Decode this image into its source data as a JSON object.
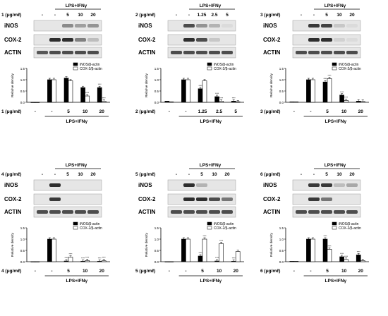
{
  "chart_data": [
    {
      "type": "bar",
      "compound": "1",
      "treatment_label": "LPS+IFNγ",
      "conc_label": "1 (μg/mℓ)",
      "lanes": [
        "-",
        "-",
        "5",
        "10",
        "20"
      ],
      "blot_labels": [
        "iNOS",
        "COX-2",
        "ACTIN"
      ],
      "categories": [
        "-",
        "-",
        "5",
        "10",
        "20"
      ],
      "series": [
        {
          "name": "iNOS/β-actin",
          "values": [
            0.0,
            1.0,
            1.07,
            0.65,
            0.65
          ]
        },
        {
          "name": "COX-2/β-actin",
          "values": [
            0.0,
            1.0,
            0.95,
            0.28,
            0.05
          ]
        }
      ],
      "annotations": [
        "",
        "",
        "",
        "****",
        "****",
        "****",
        "****"
      ],
      "ylabel": "Relative density",
      "yticks": [
        "0.0",
        "0.5",
        "1.0",
        "1.5"
      ],
      "ylim": [
        0,
        1.5
      ],
      "legend": "top-right"
    },
    {
      "type": "bar",
      "compound": "2",
      "treatment_label": "LPS+IFNγ",
      "conc_label": "2 (μg/mℓ)",
      "lanes": [
        "-",
        "-",
        "1.25",
        "2.5",
        "5"
      ],
      "blot_labels": [
        "iNOS",
        "COX-2",
        "ACTIN"
      ],
      "categories": [
        "-",
        "-",
        "1.25",
        "2.5",
        "5"
      ],
      "series": [
        {
          "name": "iNOS/β-actin",
          "values": [
            0.05,
            1.0,
            0.6,
            0.25,
            0.05
          ]
        },
        {
          "name": "COX-2/β-actin",
          "values": [
            0.02,
            1.0,
            0.95,
            0.05,
            0.02
          ]
        }
      ],
      "annotations": [
        "****",
        "",
        "****",
        "****",
        "****"
      ],
      "ylabel": "Relative density",
      "yticks": [
        "0.0",
        "0.5",
        "1.0",
        "1.5"
      ],
      "ylim": [
        0,
        1.5
      ],
      "legend": "top-right"
    },
    {
      "type": "bar",
      "compound": "3",
      "treatment_label": "LPS+IFNγ",
      "conc_label": "3 (μg/mℓ)",
      "lanes": [
        "-",
        "-",
        "5",
        "10",
        "20"
      ],
      "blot_labels": [
        "iNOS",
        "COX-2",
        "ACTIN"
      ],
      "categories": [
        "-",
        "-",
        "5",
        "10",
        "20"
      ],
      "series": [
        {
          "name": "iNOS/β-actin",
          "values": [
            0.02,
            1.0,
            0.9,
            0.32,
            0.05
          ]
        },
        {
          "name": "COX-2/β-actin",
          "values": [
            0.02,
            1.0,
            1.05,
            0.08,
            0.04
          ]
        }
      ],
      "annotations": [
        "****",
        "****",
        "****",
        "****"
      ],
      "ylabel": "Relative density",
      "yticks": [
        "0.0",
        "0.5",
        "1.0",
        "1.5"
      ],
      "ylim": [
        0,
        1.5
      ],
      "legend": "top-right"
    },
    {
      "type": "bar",
      "compound": "4",
      "treatment_label": "LPS+IFNγ",
      "conc_label": "4 (μg/mℓ)",
      "lanes": [
        "-",
        "-",
        "5",
        "10",
        "20"
      ],
      "blot_labels": [
        "iNOS",
        "COX-2",
        "ACTIN"
      ],
      "categories": [
        "-",
        "-",
        "5",
        "10",
        "20"
      ],
      "series": [
        {
          "name": "iNOS/β-actin",
          "values": [
            0.0,
            1.0,
            0.03,
            0.02,
            0.02
          ]
        },
        {
          "name": "COX-2/β-actin",
          "values": [
            0.0,
            1.0,
            0.2,
            0.05,
            0.04
          ]
        }
      ],
      "annotations": [
        "****",
        "****",
        "****",
        "****",
        "****",
        "****"
      ],
      "ylabel": "Relative density",
      "yticks": [
        "0.0",
        "0.5",
        "1.0",
        "1.5"
      ],
      "ylim": [
        0,
        1.5
      ],
      "legend": "top-right"
    },
    {
      "type": "bar",
      "compound": "5",
      "treatment_label": "LPS+IFNγ",
      "conc_label": "5 (μg/mℓ)",
      "lanes": [
        "-",
        "-",
        "5",
        "10",
        "20"
      ],
      "blot_labels": [
        "iNOS",
        "COX-2",
        "ACTIN"
      ],
      "categories": [
        "-",
        "-",
        "5",
        "10",
        "20"
      ],
      "series": [
        {
          "name": "iNOS/β-actin",
          "values": [
            0.0,
            1.0,
            0.25,
            0.03,
            0.02
          ]
        },
        {
          "name": "COX-2/β-actin",
          "values": [
            0.0,
            1.0,
            1.0,
            0.8,
            0.45
          ]
        }
      ],
      "annotations": [
        "****",
        "****",
        "****",
        "****",
        "****"
      ],
      "ylabel": "Relative density",
      "yticks": [
        "0.0",
        "0.5",
        "1.0",
        "1.5"
      ],
      "ylim": [
        0,
        1.5
      ],
      "legend": "top-right"
    },
    {
      "type": "bar",
      "compound": "6",
      "treatment_label": "LPS+IFNγ",
      "conc_label": "6 (μg/mℓ)",
      "lanes": [
        "-",
        "-",
        "5",
        "10",
        "20"
      ],
      "blot_labels": [
        "iNOS",
        "COX-2",
        "ACTIN"
      ],
      "categories": [
        "-",
        "-",
        "5",
        "10",
        "20"
      ],
      "series": [
        {
          "name": "iNOS/β-actin",
          "values": [
            0.02,
            1.0,
            1.0,
            0.22,
            0.3
          ]
        },
        {
          "name": "COX-2/β-actin",
          "values": [
            0.02,
            1.0,
            0.55,
            0.1,
            0.05
          ]
        }
      ],
      "annotations": [
        "****",
        "****",
        "****",
        "****",
        "****"
      ],
      "ylabel": "Relative density",
      "yticks": [
        "0.0",
        "0.5",
        "1.0",
        "1.5"
      ],
      "ylim": [
        0,
        1.5
      ],
      "legend": "top-right"
    }
  ],
  "colors": {
    "inos_bar": "#000000",
    "cox2_bar": "#ffffff",
    "band": "#1a1a1a",
    "membrane": "#e6e6e6"
  },
  "blots": [
    {
      "iNOS": [
        0,
        0,
        0.45,
        0.35,
        0.4
      ],
      "COX-2": [
        0,
        0.9,
        0.9,
        0.5,
        0.2
      ],
      "ACTIN": [
        0.7,
        0.75,
        0.75,
        0.75,
        0.75
      ]
    },
    {
      "iNOS": [
        0,
        0.75,
        0.4,
        0.25,
        0.05
      ],
      "COX-2": [
        0,
        0.9,
        0.75,
        0.15,
        0
      ],
      "ACTIN": [
        0.75,
        0.75,
        0.75,
        0.75,
        0.75
      ]
    },
    {
      "iNOS": [
        0,
        0.85,
        0.8,
        0.15,
        0.05
      ],
      "COX-2": [
        0,
        0.9,
        0.9,
        0.1,
        0.05
      ],
      "ACTIN": [
        0.75,
        0.75,
        0.75,
        0.75,
        0.75
      ]
    },
    {
      "iNOS": [
        0,
        0.9,
        0,
        0,
        0
      ],
      "COX-2": [
        0,
        0.85,
        0,
        0,
        0
      ],
      "ACTIN": [
        0.75,
        0.75,
        0.75,
        0.75,
        0.75
      ]
    },
    {
      "iNOS": [
        0,
        0.9,
        0.25,
        0,
        0
      ],
      "COX-2": [
        0,
        0.9,
        0.9,
        0.75,
        0.55
      ],
      "ACTIN": [
        0.75,
        0.75,
        0.75,
        0.75,
        0.75
      ]
    },
    {
      "iNOS": [
        0,
        0.85,
        0.85,
        0.2,
        0.3
      ],
      "COX-2": [
        0,
        0.85,
        0.55,
        0,
        0
      ],
      "ACTIN": [
        0.75,
        0.75,
        0.75,
        0.75,
        0.75
      ]
    }
  ]
}
